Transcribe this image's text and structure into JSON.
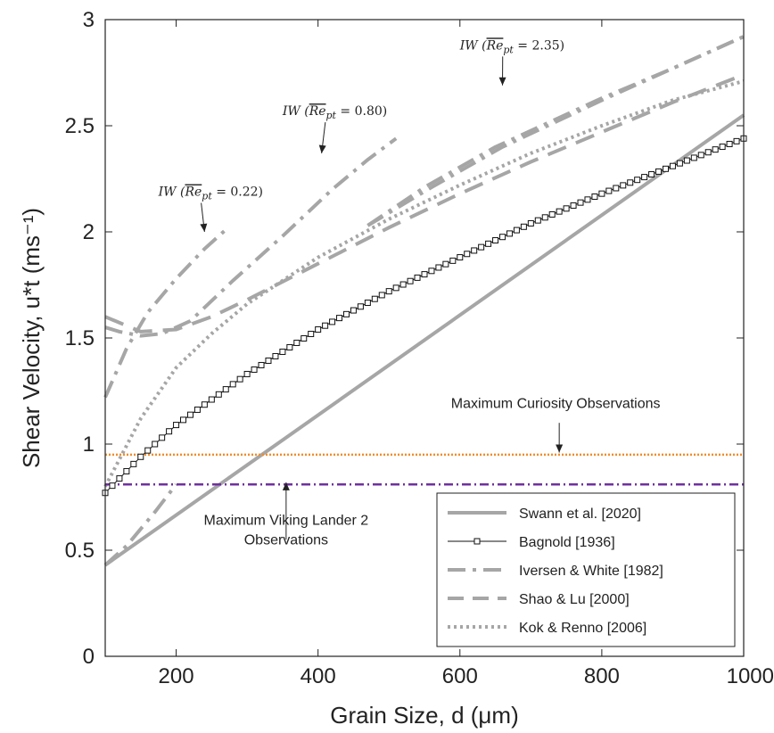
{
  "chart_data": {
    "type": "line",
    "xlabel": "Grain Size, d (μm)",
    "ylabel": "Shear Velocity, u*t (ms⁻¹)",
    "xlim": [
      100,
      1000
    ],
    "ylim": [
      0,
      3
    ],
    "xticks": [
      200,
      400,
      600,
      800,
      1000
    ],
    "yticks": [
      0,
      0.5,
      1,
      1.5,
      2,
      2.5,
      3
    ],
    "xtick_labels": [
      "200",
      "400",
      "600",
      "800",
      "1000"
    ],
    "ytick_labels": [
      "0",
      "0.5",
      "1",
      "1.5",
      "2",
      "2.5",
      "3"
    ],
    "grid": false,
    "legend_position": "bottom-right",
    "series": [
      {
        "name": "Swann et al. [2020]",
        "color": "#a6a6a6",
        "style": "solid",
        "x": [
          100,
          1000
        ],
        "y": [
          0.43,
          2.55
        ]
      },
      {
        "name": "Bagnold [1936]",
        "color": "#111111",
        "style": "square-markers",
        "x": [
          100,
          150,
          200,
          300,
          400,
          500,
          600,
          700,
          800,
          900,
          1000
        ],
        "y": [
          0.77,
          0.94,
          1.09,
          1.33,
          1.54,
          1.72,
          1.88,
          2.04,
          2.18,
          2.31,
          2.44
        ]
      },
      {
        "name": "Iversen & White [1982]",
        "color": "#a6a6a6",
        "style": "dash-dot",
        "x": [
          470,
          550,
          650,
          800,
          900,
          1000
        ],
        "y": [
          2.03,
          2.21,
          2.4,
          2.63,
          2.77,
          2.92
        ]
      },
      {
        "name": "Shao & Lu [2000]",
        "color": "#a6a6a6",
        "style": "dashed",
        "x": [
          100,
          150,
          200,
          250,
          300,
          400,
          500,
          600,
          700,
          800,
          900,
          1000
        ],
        "y": [
          1.6,
          1.53,
          1.54,
          1.6,
          1.68,
          1.85,
          2.02,
          2.18,
          2.33,
          2.47,
          2.61,
          2.74
        ]
      },
      {
        "name": "Kok & Renno [2006]",
        "color": "#a6a6a6",
        "style": "dotted",
        "x": [
          100,
          150,
          200,
          250,
          300,
          400,
          500,
          600,
          700,
          800,
          900,
          1000
        ],
        "y": [
          0.8,
          1.12,
          1.36,
          1.52,
          1.66,
          1.88,
          2.06,
          2.22,
          2.37,
          2.5,
          2.62,
          2.71
        ]
      }
    ],
    "iw_curves": [
      {
        "x": [
          100,
          130,
          160,
          200,
          240,
          270
        ],
        "y": [
          1.22,
          1.45,
          1.62,
          1.78,
          1.92,
          2.01
        ]
      },
      {
        "x": [
          100,
          120,
          150,
          180,
          220,
          280,
          350,
          420,
          470,
          510
        ],
        "y": [
          1.55,
          1.53,
          1.51,
          1.52,
          1.58,
          1.77,
          1.98,
          2.2,
          2.34,
          2.44
        ]
      },
      {
        "x": [
          470,
          560,
          660,
          800,
          900,
          1000
        ],
        "y": [
          2.03,
          2.21,
          2.4,
          2.62,
          2.77,
          2.92
        ]
      }
    ],
    "kok_extension": {
      "x": [
        100,
        130,
        170,
        200
      ],
      "y": [
        0.43,
        0.52,
        0.68,
        0.81
      ]
    },
    "horizontal_lines": [
      {
        "y": 0.95,
        "color": "#f28c28",
        "style": "dotted"
      },
      {
        "y": 0.81,
        "color": "#7030a0",
        "style": "dash-dot"
      }
    ],
    "annotations": [
      {
        "prefix": "IW (",
        "symbol": "Re",
        "sub": "pt",
        "suffix": " = 0.22)",
        "x": 185,
        "y": 2.17,
        "arrow_to": [
          240,
          2.0
        ]
      },
      {
        "prefix": "IW (",
        "symbol": "Re",
        "sub": "pt",
        "suffix": " = 0.80)",
        "x": 360,
        "y": 2.55,
        "arrow_to": [
          405,
          2.37
        ]
      },
      {
        "prefix": "IW (",
        "symbol": "Re",
        "sub": "pt",
        "suffix": " = 2.35)",
        "x": 610,
        "y": 2.86,
        "arrow_to": [
          660,
          2.69
        ]
      }
    ],
    "callouts": [
      {
        "lines": [
          "Maximum Curiosity Observations"
        ],
        "x": 735,
        "y": 1.17,
        "arrow_from": [
          740,
          1.1
        ],
        "arrow_to": [
          740,
          0.96
        ]
      },
      {
        "lines": [
          "Maximum Viking Lander 2",
          "Observations"
        ],
        "x": 355,
        "y": 0.62,
        "arrow_from": [
          355,
          0.55
        ],
        "arrow_to": [
          355,
          0.82
        ]
      }
    ]
  }
}
